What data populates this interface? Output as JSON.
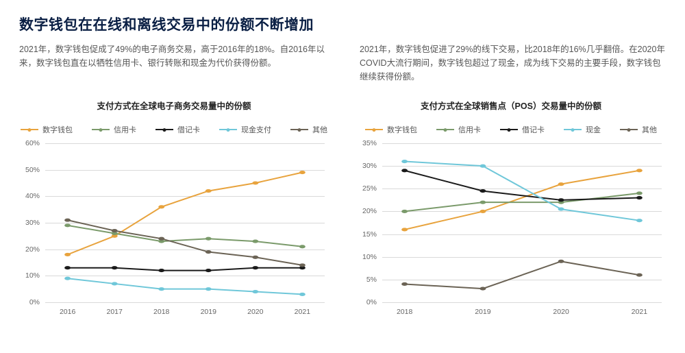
{
  "title": "数字钱包在在线和离线交易中的份额不断增加",
  "intro_left": "2021年，数字钱包促成了49%的电子商务交易，高于2016年的18%。自2016年以来，数字钱包直在以牺牲信用卡、银行转账和现金为代价获得份额。",
  "intro_right": "2021年，数字钱包促进了29%的线下交易，比2018年的16%几乎翻倍。在2020年COVID大流行期间，数字钱包超过了现金，成为线下交易的主要手段，数字钱包继续获得份额。",
  "chart_left": {
    "title": "支付方式在全球电子商务交易量中的份额",
    "type": "line",
    "categories": [
      "2016",
      "2017",
      "2018",
      "2019",
      "2020",
      "2021"
    ],
    "ylim": [
      0,
      60
    ],
    "ytick_step": 10,
    "y_suffix": "%",
    "grid_color": "#d9d9d9",
    "background_color": "#ffffff",
    "series": [
      {
        "name": "数字钱包",
        "color": "#e8a33d",
        "values": [
          18,
          25,
          36,
          42,
          45,
          49
        ]
      },
      {
        "name": "信用卡",
        "color": "#7a9a6a",
        "values": [
          29,
          26,
          23,
          24,
          23,
          21
        ]
      },
      {
        "name": "借记卡",
        "color": "#1a1a1a",
        "values": [
          13,
          13,
          12,
          12,
          13,
          13
        ]
      },
      {
        "name": "现金支付",
        "color": "#6fc7d9",
        "values": [
          9,
          7,
          5,
          5,
          4,
          3
        ]
      },
      {
        "name": "其他",
        "color": "#6b6355",
        "values": [
          31,
          27,
          24,
          19,
          17,
          14
        ]
      }
    ],
    "line_width": 2,
    "marker_radius": 3,
    "title_fontsize": 12.5,
    "label_fontsize": 10.5
  },
  "chart_right": {
    "title": "支付方式在全球销售点（POS）交易量中的份额",
    "type": "line",
    "categories": [
      "2018",
      "2019",
      "2020",
      "2021"
    ],
    "ylim": [
      0,
      35
    ],
    "ytick_step": 5,
    "y_suffix": "%",
    "grid_color": "#d9d9d9",
    "background_color": "#ffffff",
    "series": [
      {
        "name": "数字钱包",
        "color": "#e8a33d",
        "values": [
          16,
          20,
          26,
          29
        ]
      },
      {
        "name": "信用卡",
        "color": "#7a9a6a",
        "values": [
          20,
          22,
          22,
          24
        ]
      },
      {
        "name": "借记卡",
        "color": "#1a1a1a",
        "values": [
          29,
          24.5,
          22.5,
          23
        ]
      },
      {
        "name": "现金",
        "color": "#6fc7d9",
        "values": [
          31,
          30,
          20.5,
          18
        ]
      },
      {
        "name": "其他",
        "color": "#6b6355",
        "values": [
          4,
          3,
          9,
          6
        ]
      }
    ],
    "line_width": 2,
    "marker_radius": 3,
    "title_fontsize": 12.5,
    "label_fontsize": 10.5
  }
}
